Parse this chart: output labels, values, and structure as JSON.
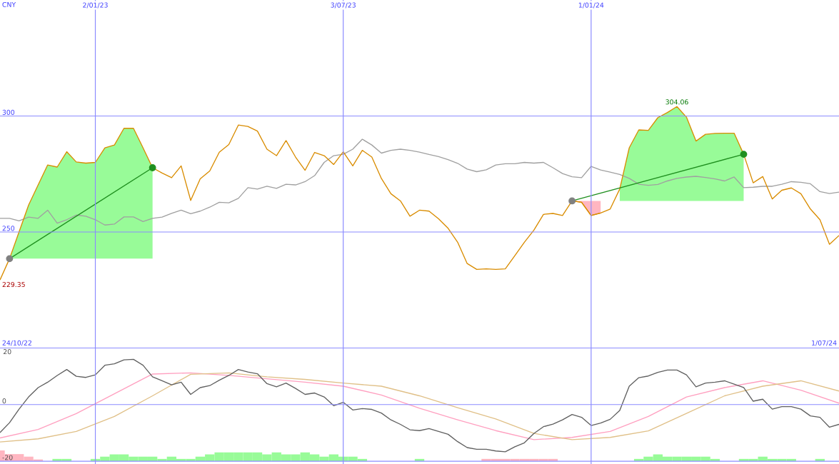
{
  "chart_data": [
    {
      "type": "line",
      "x": [
        "2022-10-24",
        "2022-10-31",
        "2022-11-07",
        "2022-11-14",
        "2022-11-21",
        "2022-11-28",
        "2022-12-05",
        "2022-12-12",
        "2022-12-19",
        "2022-12-26",
        "2023-01-02",
        "2023-01-09",
        "2023-01-16",
        "2023-01-23",
        "2023-01-30",
        "2023-02-06",
        "2023-02-13",
        "2023-02-20",
        "2023-02-27",
        "2023-03-06",
        "2023-03-13",
        "2023-03-20",
        "2023-03-27",
        "2023-04-03",
        "2023-04-10",
        "2023-04-17",
        "2023-04-24",
        "2023-05-01",
        "2023-05-08",
        "2023-05-15",
        "2023-05-22",
        "2023-05-29",
        "2023-06-05",
        "2023-06-12",
        "2023-06-19",
        "2023-06-26",
        "2023-07-03",
        "2023-07-10",
        "2023-07-17",
        "2023-07-24",
        "2023-07-31",
        "2023-08-07",
        "2023-08-14",
        "2023-08-21",
        "2023-08-28",
        "2023-09-04",
        "2023-09-11",
        "2023-09-18",
        "2023-09-25",
        "2023-10-02",
        "2023-10-09",
        "2023-10-16",
        "2023-10-23",
        "2023-10-30",
        "2023-11-06",
        "2023-11-13",
        "2023-11-20",
        "2023-11-27",
        "2023-12-04",
        "2023-12-11",
        "2023-12-18",
        "2023-12-25",
        "2024-01-01",
        "2024-01-08",
        "2024-01-15",
        "2024-01-22",
        "2024-01-29",
        "2024-02-05",
        "2024-02-12",
        "2024-02-19",
        "2024-02-26",
        "2024-03-04",
        "2024-03-11",
        "2024-03-18",
        "2024-03-25",
        "2024-04-01",
        "2024-04-08",
        "2024-04-15",
        "2024-04-22",
        "2024-04-29",
        "2024-05-06",
        "2024-05-13",
        "2024-05-20",
        "2024-05-27",
        "2024-06-03",
        "2024-06-10",
        "2024-06-17",
        "2024-06-24",
        "2024-07-01"
      ],
      "xlim": [
        "2022-10-24",
        "2024-07-01"
      ],
      "ylim": [
        200,
        350
      ],
      "xticks": [
        {
          "value": "2023-01-02",
          "label": "2/01/23"
        },
        {
          "value": "2023-07-03",
          "label": "3/07/23"
        },
        {
          "value": "2024-01-01",
          "label": "1/01/24"
        }
      ],
      "yticks": [
        250,
        300
      ],
      "grid": true,
      "annotations": [
        "CNY",
        "24/10/22",
        "1/07/24",
        {
          "text": "229.35",
          "x": "2022-10-24",
          "y": 229.35
        },
        {
          "text": "304.06",
          "x": "2024-03-04",
          "y": 304.06
        }
      ],
      "series": [
        {
          "color": "#a0a0a0",
          "values": [
            255.9,
            255.9,
            254.8,
            256.4,
            255.9,
            259.4,
            253.8,
            255.3,
            257.3,
            256.8,
            255.3,
            253,
            253.4,
            256.5,
            256.5,
            254.5,
            255.9,
            256.4,
            258,
            259.4,
            257.9,
            259,
            260.7,
            262.8,
            262.6,
            264.5,
            269.1,
            268.5,
            269.7,
            268.8,
            270.6,
            270.3,
            271.7,
            274.3,
            280,
            282.9,
            283.5,
            285.7,
            290,
            287.5,
            284,
            285.2,
            285.7,
            285.2,
            284.4,
            283.4,
            282.5,
            281.2,
            279.6,
            277.1,
            276,
            276.8,
            278.9,
            279.4,
            279.4,
            280,
            279.7,
            280,
            277.7,
            275.2,
            273.8,
            273.4,
            278.3,
            276.7,
            275.8,
            274.8,
            273.1,
            270.6,
            270.1,
            270.5,
            272,
            273.1,
            273.7,
            274,
            273.5,
            272.9,
            272,
            273.7,
            269.1,
            269.3,
            269.7,
            269.7,
            270.6,
            271.7,
            271.4,
            270.8,
            267.4,
            266.6,
            267.2
          ]
        },
        {
          "color": "#d98c00",
          "lower": [
            null,
            238.5,
            238.5,
            238.5,
            238.5,
            238.5,
            238.5,
            238.5,
            238.5,
            238.5,
            238.5,
            238.5,
            238.5,
            238.5,
            238.5,
            238.5,
            238.5,
            null,
            null,
            null,
            null,
            null,
            null,
            null,
            null,
            null,
            null,
            null,
            null,
            null,
            null,
            null,
            null,
            null,
            null,
            null,
            null,
            null,
            null,
            null,
            null,
            null,
            null,
            null,
            null,
            null,
            null,
            null,
            null,
            null,
            null,
            null,
            null,
            null,
            null,
            null,
            null,
            null,
            null,
            null,
            null,
            null,
            null,
            null,
            null,
            263.4,
            263.4,
            263.4,
            263.4,
            263.4,
            263.4,
            263.4,
            263.4,
            263.4,
            263.4,
            263.4,
            263.4,
            263.4,
            263.4,
            null,
            null,
            null,
            null,
            null,
            null,
            null,
            null,
            null,
            null
          ],
          "upper": [
            null,
            238.5,
            250.1,
            261.6,
            270.3,
            278.9,
            278,
            284.6,
            280.2,
            279.7,
            280,
            286.3,
            287.5,
            294.7,
            294.7,
            286.3,
            277.7,
            null,
            null,
            null,
            null,
            null,
            null,
            null,
            null,
            null,
            null,
            null,
            null,
            null,
            null,
            null,
            null,
            null,
            null,
            null,
            null,
            null,
            null,
            null,
            null,
            null,
            null,
            null,
            null,
            null,
            null,
            null,
            null,
            null,
            null,
            null,
            null,
            null,
            null,
            null,
            null,
            null,
            null,
            null,
            null,
            null,
            null,
            null,
            null,
            268.5,
            286.3,
            294,
            293.8,
            299.3,
            301.5,
            304.06,
            299.5,
            289.2,
            292.1,
            292.5,
            292.6,
            292.6,
            283.5,
            null,
            null,
            null,
            null,
            null,
            null,
            null,
            null,
            null,
            null
          ],
          "values": [
            229.35,
            238.5,
            250.1,
            261.6,
            270.3,
            278.9,
            278,
            284.6,
            280.2,
            279.7,
            280,
            286.3,
            287.5,
            294.7,
            294.7,
            286.3,
            277.7,
            275.4,
            273.4,
            278.5,
            263.6,
            272.9,
            276.3,
            284.4,
            287.7,
            296.1,
            295.5,
            293.5,
            285.7,
            282.9,
            289.4,
            282.3,
            276.6,
            284.3,
            282.9,
            279.1,
            284.6,
            278.5,
            285.2,
            282.3,
            273.1,
            266.5,
            263.4,
            256.8,
            259.4,
            259,
            255.7,
            251.6,
            245.6,
            236.4,
            233.9,
            234.1,
            233.9,
            234.1,
            239.8,
            245.6,
            250.8,
            257.6,
            258,
            257.1,
            263.4,
            262.8,
            257.1,
            258.2,
            259.9,
            268.5,
            286.3,
            294,
            293.8,
            299.3,
            301.5,
            304.06,
            299.5,
            289.2,
            292.1,
            292.5,
            292.6,
            292.6,
            283.5,
            271.2,
            273.9,
            264.2,
            268,
            269,
            266.5,
            259.9,
            255.3,
            244.7,
            248.5
          ]
        },
        {
          "color": "#d98c00",
          "x": [
            "2023-12-18",
            "2023-12-25",
            "2024-01-01",
            "2024-01-08"
          ],
          "lower": [
            263.4,
            262.8,
            257.1,
            258.2
          ],
          "upper": [
            263.4,
            263.4,
            263.4,
            263.4
          ],
          "values": [
            263.4,
            262.8,
            257.1,
            258.2
          ]
        },
        {
          "type": "line",
          "color": "#1f8f1f",
          "marker": "circle",
          "colors": [
            "#808080",
            "#1f8f1f"
          ],
          "x": [
            "2022-10-31",
            "2023-02-13"
          ],
          "values": [
            238.5,
            277.7
          ]
        },
        {
          "type": "line",
          "color": "#1f8f1f",
          "marker": "circle",
          "colors": [
            "#808080",
            "#1f8f1f"
          ],
          "x": [
            "2023-12-18",
            "2024-04-22"
          ],
          "values": [
            263.4,
            283.5
          ]
        }
      ]
    },
    {
      "type": "line",
      "x": [
        "2022-10-24",
        "2022-10-31",
        "2022-11-07",
        "2022-11-14",
        "2022-11-21",
        "2022-11-28",
        "2022-12-05",
        "2022-12-12",
        "2022-12-19",
        "2022-12-26",
        "2023-01-02",
        "2023-01-09",
        "2023-01-16",
        "2023-01-23",
        "2023-01-30",
        "2023-02-06",
        "2023-02-13",
        "2023-02-20",
        "2023-02-27",
        "2023-03-06",
        "2023-03-13",
        "2023-03-20",
        "2023-03-27",
        "2023-04-03",
        "2023-04-10",
        "2023-04-17",
        "2023-04-24",
        "2023-05-01",
        "2023-05-08",
        "2023-05-15",
        "2023-05-22",
        "2023-05-29",
        "2023-06-05",
        "2023-06-12",
        "2023-06-19",
        "2023-06-26",
        "2023-07-03",
        "2023-07-10",
        "2023-07-17",
        "2023-07-24",
        "2023-07-31",
        "2023-08-07",
        "2023-08-14",
        "2023-08-21",
        "2023-08-28",
        "2023-09-04",
        "2023-09-11",
        "2023-09-18",
        "2023-09-25",
        "2023-10-02",
        "2023-10-09",
        "2023-10-16",
        "2023-10-23",
        "2023-10-30",
        "2023-11-06",
        "2023-11-13",
        "2023-11-20",
        "2023-11-27",
        "2023-12-04",
        "2023-12-11",
        "2023-12-18",
        "2023-12-25",
        "2024-01-01",
        "2024-01-08",
        "2024-01-15",
        "2024-01-22",
        "2024-01-29",
        "2024-02-05",
        "2024-02-12",
        "2024-02-19",
        "2024-02-26",
        "2024-03-04",
        "2024-03-11",
        "2024-03-18",
        "2024-03-25",
        "2024-04-01",
        "2024-04-08",
        "2024-04-15",
        "2024-04-22",
        "2024-04-29",
        "2024-05-06",
        "2024-05-13",
        "2024-05-20",
        "2024-05-27",
        "2024-06-03",
        "2024-06-10",
        "2024-06-17",
        "2024-06-24",
        "2024-07-01"
      ],
      "xlim": [
        "2022-10-24",
        "2024-07-01"
      ],
      "ylim": [
        -21,
        20
      ],
      "xticks": [
        {
          "value": "2023-01-02",
          "label": null
        },
        {
          "value": "2023-07-03",
          "label": null
        },
        {
          "value": "2024-01-01",
          "label": null
        }
      ],
      "yticks": [
        -20,
        0,
        20
      ],
      "tick_labels": "y",
      "grid": true,
      "series": [
        {
          "type": "bar",
          "x": [
            "2022-10-24",
            "2022-10-31",
            "2022-11-07",
            "2022-11-14",
            "2022-11-21",
            "2022-12-05",
            "2022-12-12",
            "2023-01-02",
            "2023-01-09",
            "2023-01-16",
            "2023-01-23",
            "2023-01-30",
            "2023-02-06",
            "2023-02-13",
            "2023-02-20",
            "2023-02-27",
            "2023-03-06",
            "2023-03-13",
            "2023-03-20",
            "2023-03-27",
            "2023-04-03",
            "2023-04-10",
            "2023-04-17",
            "2023-04-24",
            "2023-05-01",
            "2023-05-08",
            "2023-05-15",
            "2023-05-22",
            "2023-05-29",
            "2023-06-05",
            "2023-06-12",
            "2023-06-19",
            "2023-06-26",
            "2023-07-03",
            "2023-07-10",
            "2023-07-17",
            "2023-08-28",
            "2023-10-16",
            "2023-10-23",
            "2023-10-30",
            "2023-11-06",
            "2023-11-13",
            "2023-11-20",
            "2023-11-27",
            "2023-12-04",
            "2024-02-05",
            "2024-02-12",
            "2024-02-19",
            "2024-02-26",
            "2024-03-04",
            "2024-03-11",
            "2024-03-18",
            "2024-03-25",
            "2024-04-01",
            "2024-04-22",
            "2024-04-29",
            "2024-05-06",
            "2024-05-13",
            "2024-05-20",
            "2024-05-27",
            "2024-06-17"
          ],
          "values": [
            3.8,
            2.5,
            2.5,
            1.6,
            0.6,
            0.8,
            0.8,
            0.8,
            1.6,
            2.4,
            2.4,
            1.6,
            1.6,
            1.6,
            0.8,
            1.6,
            0.8,
            0.8,
            1.6,
            2.4,
            3.1,
            3.1,
            3.1,
            3.1,
            3.1,
            2.4,
            3.1,
            2.4,
            2.4,
            3.1,
            2.4,
            1.6,
            2.4,
            1.6,
            1.6,
            0.8,
            0.8,
            0.8,
            0.8,
            0.8,
            0.8,
            0.8,
            0.8,
            0.8,
            0.8,
            0.8,
            1.6,
            2.4,
            1.6,
            1.6,
            1.6,
            1.6,
            1.6,
            0.8,
            0.8,
            0.8,
            1.6,
            0.8,
            0.8,
            0.8,
            0.8
          ],
          "base": [
            -20,
            -20,
            -20,
            -20,
            -20,
            -20,
            -20,
            -20,
            -20,
            -20,
            -20,
            -20,
            -20,
            -20,
            -20,
            -20,
            -20,
            -20,
            -20,
            -20,
            -20,
            -20,
            -20,
            -20,
            -20,
            -20,
            -20,
            -20,
            -20,
            -20,
            -20,
            -20,
            -20,
            -20,
            -20,
            -20,
            -20,
            -20,
            -20,
            -20,
            -20,
            -20,
            -20,
            -20,
            -20,
            -20,
            -20,
            -20,
            -20,
            -20,
            -20,
            -20,
            -20,
            -20,
            -20,
            -20,
            -20,
            -20,
            -20,
            -20,
            -20
          ],
          "colors": [
            "#ffb6c1",
            "#ffb6c1",
            "#ffb6c1",
            "#ffb6c1",
            "#ffb6c1",
            "#98fb98",
            "#98fb98",
            "#98fb98",
            "#98fb98",
            "#98fb98",
            "#98fb98",
            "#98fb98",
            "#98fb98",
            "#98fb98",
            "#98fb98",
            "#98fb98",
            "#98fb98",
            "#98fb98",
            "#98fb98",
            "#98fb98",
            "#98fb98",
            "#98fb98",
            "#98fb98",
            "#98fb98",
            "#98fb98",
            "#98fb98",
            "#98fb98",
            "#98fb98",
            "#98fb98",
            "#98fb98",
            "#98fb98",
            "#98fb98",
            "#98fb98",
            "#98fb98",
            "#98fb98",
            "#98fb98",
            "#98fb98",
            "#ffb6c1",
            "#ffb6c1",
            "#ffb6c1",
            "#ffb6c1",
            "#ffb6c1",
            "#ffb6c1",
            "#ffb6c1",
            "#ffb6c1",
            "#98fb98",
            "#98fb98",
            "#98fb98",
            "#98fb98",
            "#98fb98",
            "#98fb98",
            "#98fb98",
            "#98fb98",
            "#98fb98",
            "#98fb98",
            "#98fb98",
            "#98fb98",
            "#98fb98",
            "#98fb98",
            "#98fb98",
            "#98fb98"
          ]
        },
        {
          "color": "#ffa0c0",
          "x": [
            "2022-10-24",
            "2022-11-21",
            "2022-12-19",
            "2023-01-16",
            "2023-02-13",
            "2023-03-13",
            "2023-04-10",
            "2023-05-08",
            "2023-06-05",
            "2023-07-03",
            "2023-07-31",
            "2023-08-28",
            "2023-09-25",
            "2023-10-23",
            "2023-11-20",
            "2023-12-18",
            "2024-01-15",
            "2024-02-12",
            "2024-03-11",
            "2024-04-08",
            "2024-05-06",
            "2024-06-03",
            "2024-07-01"
          ],
          "values": [
            -11.8,
            -8.8,
            -3.2,
            3.8,
            10.8,
            11.2,
            10.3,
            9.1,
            7.9,
            6.5,
            3.4,
            -1.3,
            -5.4,
            -9.2,
            -12.4,
            -11.6,
            -9.5,
            -4.2,
            2.7,
            6,
            8.4,
            5.1,
            0.5
          ]
        },
        {
          "color": "#e0c088",
          "x": [
            "2022-10-24",
            "2022-11-21",
            "2022-12-19",
            "2023-01-16",
            "2023-02-13",
            "2023-03-13",
            "2023-04-10",
            "2023-05-08",
            "2023-06-05",
            "2023-07-03",
            "2023-07-31",
            "2023-08-28",
            "2023-09-25",
            "2023-10-23",
            "2023-11-20",
            "2023-12-18",
            "2024-01-15",
            "2024-02-12",
            "2024-03-11",
            "2024-04-08",
            "2024-05-06",
            "2024-06-03",
            "2024-07-01"
          ],
          "values": [
            -13.2,
            -12.1,
            -9.5,
            -4.2,
            3.1,
            10.7,
            11.2,
            9.8,
            8.9,
            7.6,
            6.5,
            3.1,
            -1.1,
            -5.1,
            -10.2,
            -12.4,
            -11.6,
            -9.3,
            -3.1,
            3.1,
            6.5,
            8.4,
            4.8
          ]
        },
        {
          "color": "#606060",
          "values": [
            -9.9,
            -6.4,
            -1.6,
            2.7,
            6,
            7.9,
            10.3,
            12.4,
            10,
            9.6,
            10.5,
            13.9,
            14.4,
            15.8,
            16,
            13.9,
            9.8,
            8.4,
            7,
            7.9,
            3.6,
            6,
            6.7,
            8.6,
            10.3,
            12.4,
            11.5,
            10.9,
            7.4,
            6.3,
            7.6,
            5.7,
            3.6,
            4.1,
            2.7,
            -0.4,
            0.8,
            -1.9,
            -1.4,
            -1.7,
            -3,
            -5.4,
            -7,
            -8.9,
            -9.2,
            -8.5,
            -9.5,
            -10.5,
            -13.1,
            -15.2,
            -15.8,
            -15.8,
            -16.4,
            -16.7,
            -14.9,
            -13.5,
            -10.2,
            -7.8,
            -6.9,
            -5.4,
            -3.5,
            -4.5,
            -7.4,
            -6.5,
            -5.2,
            -2.1,
            6.5,
            9.5,
            10.1,
            11.4,
            12.2,
            12.2,
            10.5,
            6.3,
            7.6,
            7.9,
            8.4,
            7.2,
            6,
            1.2,
            1.9,
            -1.6,
            -0.7,
            -0.7,
            -1.6,
            -4,
            -4.5,
            -8,
            -7
          ]
        }
      ]
    }
  ]
}
